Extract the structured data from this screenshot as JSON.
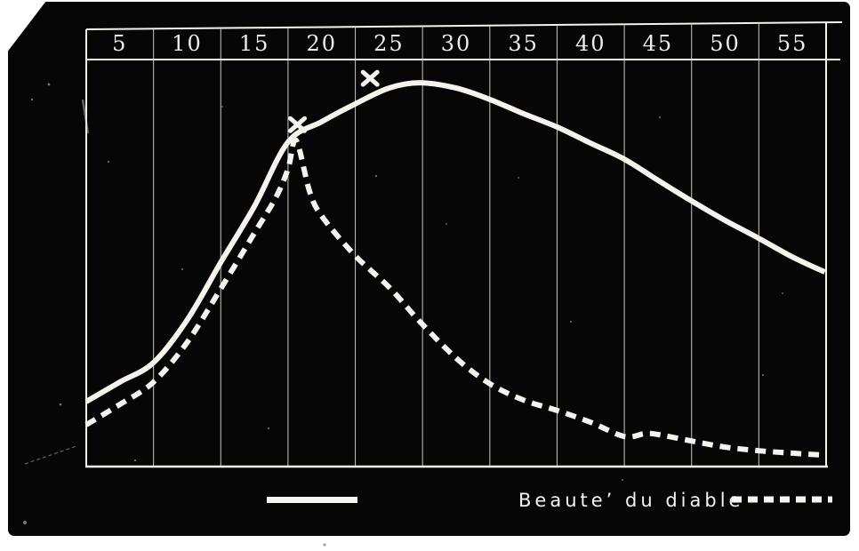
{
  "figure": {
    "background_color": "#ffffff",
    "plate_color": "#060606",
    "ink_color": "#f5f3ec",
    "grid_color": "#d8d5cc"
  },
  "axis": {
    "labels": [
      "5",
      "10",
      "15",
      "20",
      "25",
      "30",
      "35",
      "40",
      "45",
      "50",
      "55"
    ]
  },
  "legend": {
    "solid_series_label": "",
    "dashed_series_label": "Beaute’ du diable"
  },
  "chart_data": {
    "type": "line",
    "title": "",
    "xlabel": "",
    "ylabel": "",
    "x_axis_ticks": [
      5,
      10,
      15,
      20,
      25,
      30,
      35,
      40,
      45,
      50,
      55
    ],
    "y_axis": "unlabeled (no y scale printed); values below are relative heights 0-100 of plot area",
    "grid": "vertical gridlines only, black background, white ink",
    "legend_position": "below plot",
    "series": [
      {
        "name": "solid curve (unlabeled)",
        "line_style": "solid",
        "points": [
          [
            2.5,
            16.0
          ],
          [
            5,
            20.8
          ],
          [
            7.5,
            25.6
          ],
          [
            10,
            36.1
          ],
          [
            12.5,
            50.3
          ],
          [
            15,
            64.1
          ],
          [
            17.5,
            79.9
          ],
          [
            20,
            84.9
          ],
          [
            22.5,
            89.3
          ],
          [
            25,
            93.2
          ],
          [
            27.3,
            94.5
          ],
          [
            30,
            93.2
          ],
          [
            32.5,
            90.4
          ],
          [
            35,
            86.9
          ],
          [
            37.5,
            83.6
          ],
          [
            40,
            79.6
          ],
          [
            42.5,
            75.7
          ],
          [
            45,
            70.5
          ],
          [
            47.5,
            65.4
          ],
          [
            50,
            60.6
          ],
          [
            52.5,
            56.2
          ],
          [
            55,
            51.6
          ],
          [
            57.4,
            47.9
          ]
        ]
      },
      {
        "name": "Beauté du diable",
        "line_style": "dashed",
        "points": [
          [
            2.5,
            10.3
          ],
          [
            5,
            15.3
          ],
          [
            7.5,
            20.8
          ],
          [
            10,
            30.6
          ],
          [
            12.5,
            43.8
          ],
          [
            15,
            57.5
          ],
          [
            16.6,
            66.3
          ],
          [
            17.5,
            73.3
          ],
          [
            18.1,
            80.3
          ],
          [
            19.1,
            67.8
          ],
          [
            20,
            61.7
          ],
          [
            22.5,
            51.9
          ],
          [
            25,
            44.2
          ],
          [
            27.3,
            35.7
          ],
          [
            30,
            26.7
          ],
          [
            32.5,
            20.4
          ],
          [
            35,
            16.4
          ],
          [
            37.5,
            13.8
          ],
          [
            40,
            10.9
          ],
          [
            42.5,
            7.4
          ],
          [
            44,
            8.1
          ],
          [
            45,
            7.9
          ],
          [
            47.5,
            6.3
          ],
          [
            50,
            4.8
          ],
          [
            52.5,
            3.9
          ],
          [
            55,
            3.3
          ],
          [
            57.4,
            2.8
          ]
        ]
      }
    ],
    "markers": [
      {
        "symbol": "x",
        "x": 18.2,
        "y": 84.2
      },
      {
        "symbol": "x",
        "x": 23.6,
        "y": 95.6
      }
    ]
  }
}
